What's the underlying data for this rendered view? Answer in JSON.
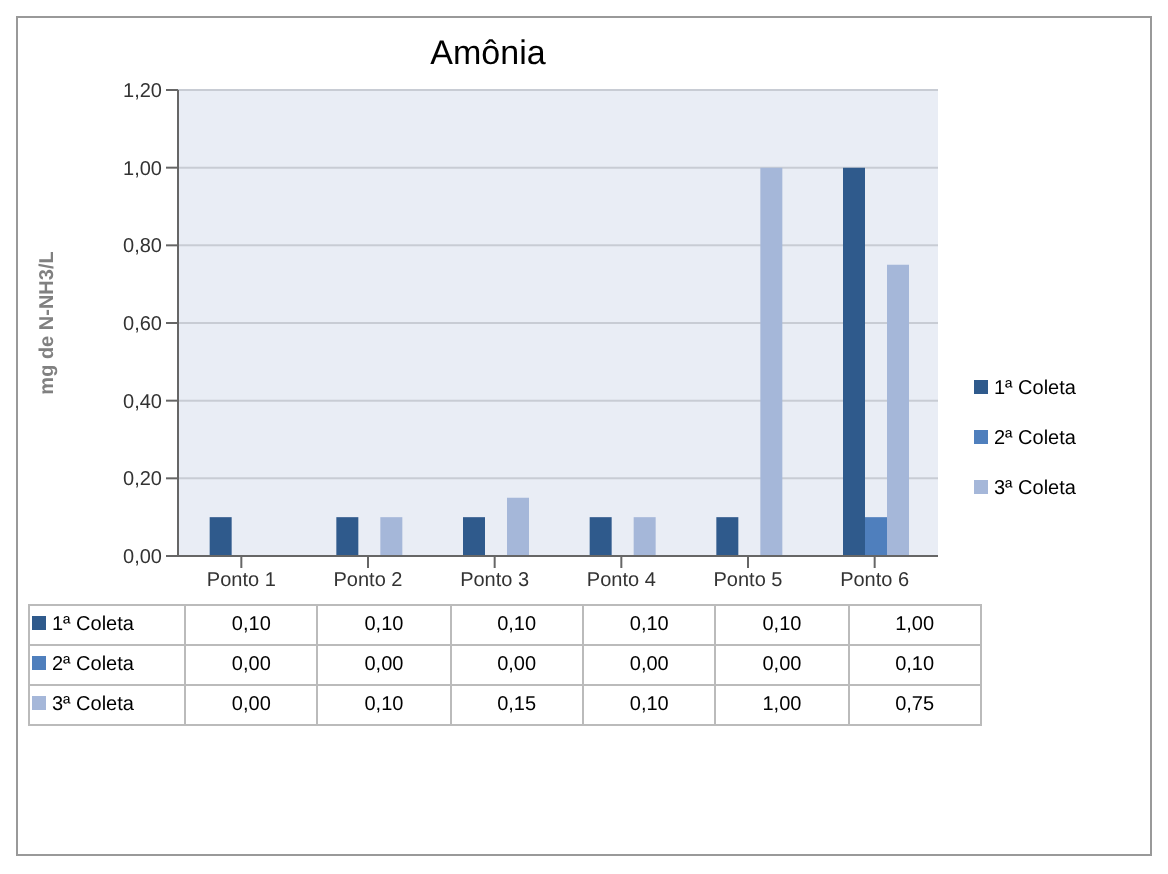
{
  "chart_data": {
    "type": "bar",
    "title": "Amônia",
    "ylabel": "mg de N-NH3/L",
    "categories": [
      "Ponto 1",
      "Ponto 2",
      "Ponto 3",
      "Ponto 4",
      "Ponto 5",
      "Ponto 6"
    ],
    "series": [
      {
        "name": "1ª Coleta",
        "color": "#2f5a8c",
        "values": [
          0.1,
          0.1,
          0.1,
          0.1,
          0.1,
          1.0
        ],
        "value_labels": [
          "0,10",
          "0,10",
          "0,10",
          "0,10",
          "0,10",
          "1,00"
        ]
      },
      {
        "name": "2ª Coleta",
        "color": "#4f7fbd",
        "values": [
          0,
          0,
          0,
          0,
          0,
          0.1
        ],
        "value_labels": [
          "0,00",
          "0,00",
          "0,00",
          "0,00",
          "0,00",
          "0,10"
        ]
      },
      {
        "name": "3ª Coleta",
        "color": "#a5b7d9",
        "values": [
          0,
          0.1,
          0.15,
          0.1,
          1.0,
          0.75
        ],
        "value_labels": [
          "0,00",
          "0,10",
          "0,15",
          "0,10",
          "1,00",
          "0,75"
        ]
      }
    ],
    "ylim": [
      0,
      1.2
    ],
    "yticks": [
      {
        "value": 0,
        "label": "0,00"
      },
      {
        "value": 0.2,
        "label": "0,20"
      },
      {
        "value": 0.4,
        "label": "0,40"
      },
      {
        "value": 0.6,
        "label": "0,60"
      },
      {
        "value": 0.8,
        "label": "0,80"
      },
      {
        "value": 1.0,
        "label": "1,00"
      },
      {
        "value": 1.2,
        "label": "1,20"
      }
    ],
    "grid": "y",
    "legend": "right"
  }
}
